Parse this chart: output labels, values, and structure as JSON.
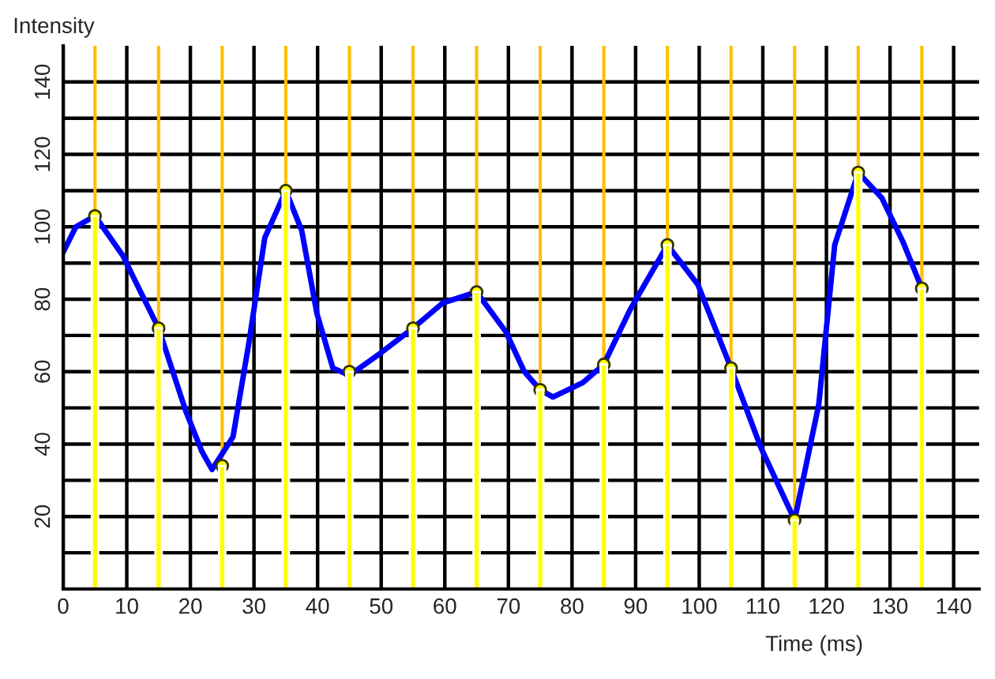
{
  "chart_data": {
    "type": "bar",
    "xlabel": "Time (ms)",
    "ylabel": "Intensity",
    "x": [
      5,
      15,
      25,
      35,
      45,
      55,
      65,
      75,
      85,
      95,
      105,
      115,
      125,
      135
    ],
    "series": [
      {
        "color": "#ffff00",
        "values": [
          103,
          72,
          34,
          110,
          60,
          72,
          82,
          55,
          62,
          95,
          61,
          19,
          115,
          83
        ]
      },
      {
        "type": "scatter",
        "color": "#ffff00",
        "marker": "circle",
        "values": [
          103,
          72,
          34,
          110,
          60,
          72,
          82,
          55,
          62,
          95,
          61,
          19,
          115,
          83
        ]
      },
      {
        "type": "line",
        "color": "#0000ff",
        "x": [
          0,
          2,
          5,
          9.4,
          11.9,
          15,
          19.3,
          21.8,
          23.4,
          26.7,
          29.2,
          31.7,
          35,
          37.5,
          39.9,
          42.4,
          45,
          49.8,
          55,
          59.7,
          65,
          69.6,
          72.5,
          75,
          77,
          81.7,
          85,
          89.1,
          95,
          99.8,
          105,
          109.7,
          115,
          118.8,
          121.3,
          125,
          128.7,
          132,
          135
        ],
        "values": [
          93,
          100,
          103,
          92,
          83,
          72,
          49,
          38,
          33,
          42,
          68,
          97,
          110,
          99,
          76,
          61,
          59,
          65,
          72,
          79,
          82,
          71,
          60,
          55,
          53,
          57,
          62,
          77,
          95,
          84,
          61,
          39,
          19,
          51,
          95,
          115,
          108,
          96,
          83
        ]
      }
    ],
    "xlim": [
      0,
      144
    ],
    "xticks": [
      0,
      10,
      20,
      30,
      40,
      50,
      60,
      70,
      80,
      90,
      100,
      110,
      120,
      130,
      140
    ],
    "ylim": [
      0,
      150
    ],
    "yticks": [
      {
        "value": 10,
        "label": null
      },
      20,
      {
        "value": 30,
        "label": null
      },
      40,
      {
        "value": 50,
        "label": null
      },
      60,
      {
        "value": 70,
        "label": null
      },
      80,
      {
        "value": 90,
        "label": null
      },
      100,
      {
        "value": 110,
        "label": null
      },
      120,
      {
        "value": 130,
        "label": null
      },
      140
    ],
    "grid": true,
    "ref_lines": [
      {
        "axis": "x",
        "value": 5,
        "color": "#ffc000"
      },
      {
        "axis": "x",
        "value": 15,
        "color": "#ffc000"
      },
      {
        "axis": "x",
        "value": 25,
        "color": "#ffc000"
      },
      {
        "axis": "x",
        "value": 35,
        "color": "#ffc000"
      },
      {
        "axis": "x",
        "value": 45,
        "color": "#ffc000"
      },
      {
        "axis": "x",
        "value": 55,
        "color": "#ffc000"
      },
      {
        "axis": "x",
        "value": 65,
        "color": "#ffc000"
      },
      {
        "axis": "x",
        "value": 75,
        "color": "#ffc000"
      },
      {
        "axis": "x",
        "value": 85,
        "color": "#ffc000"
      },
      {
        "axis": "x",
        "value": 95,
        "color": "#ffc000"
      },
      {
        "axis": "x",
        "value": 105,
        "color": "#ffc000"
      },
      {
        "axis": "x",
        "value": 115,
        "color": "#ffc000"
      },
      {
        "axis": "x",
        "value": 125,
        "color": "#ffc000"
      },
      {
        "axis": "x",
        "value": 135,
        "color": "#ffc000"
      }
    ]
  }
}
